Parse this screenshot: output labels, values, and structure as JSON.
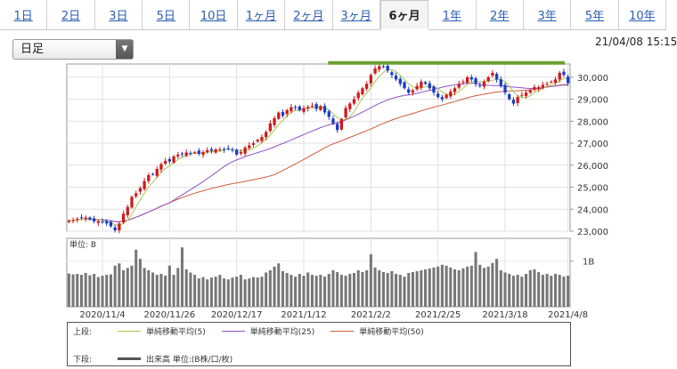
{
  "tabs": [
    {
      "label": "1日",
      "active": false
    },
    {
      "label": "2日",
      "active": false
    },
    {
      "label": "3日",
      "active": false
    },
    {
      "label": "5日",
      "active": false
    },
    {
      "label": "10日",
      "active": false
    },
    {
      "label": "1ヶ月",
      "active": false
    },
    {
      "label": "2ヶ月",
      "active": false
    },
    {
      "label": "3ヶ月",
      "active": false
    },
    {
      "label": "6ヶ月",
      "active": true
    },
    {
      "label": "1年",
      "active": false
    },
    {
      "label": "2年",
      "active": false
    },
    {
      "label": "3年",
      "active": false
    },
    {
      "label": "5年",
      "active": false
    },
    {
      "label": "10年",
      "active": false
    }
  ],
  "period_select": {
    "value": "日足"
  },
  "datetime": "21/04/08 15:15",
  "chart_data": {
    "type": "candlestick",
    "price_axis": {
      "ylim": [
        23000,
        30600
      ],
      "ticks": [
        23000,
        24000,
        25000,
        26000,
        27000,
        28000,
        29000,
        30000
      ],
      "tick_labels": [
        "23,000",
        "24,000",
        "25,000",
        "26,000",
        "27,000",
        "28,000",
        "29,000",
        "30,000"
      ]
    },
    "volume_axis": {
      "unit_label": "単位: B",
      "tick": 1,
      "tick_label": "1B"
    },
    "x_tick_labels": [
      "2020/11/4",
      "2020/11/26",
      "2020/12/17",
      "2021/1/12",
      "2021/2/2",
      "2021/2/25",
      "2021/3/18",
      "2021/4/8"
    ],
    "x_tick_index": [
      8,
      24,
      40,
      56,
      72,
      88,
      104,
      119
    ],
    "resistance_line": 30650,
    "close": [
      23480,
      23500,
      23560,
      23600,
      23620,
      23530,
      23450,
      23460,
      23420,
      23350,
      23220,
      23040,
      23350,
      23800,
      24100,
      24560,
      24720,
      24960,
      25280,
      25550,
      25590,
      25830,
      26050,
      26200,
      26170,
      26400,
      26480,
      26510,
      26580,
      26550,
      26590,
      26520,
      26600,
      26680,
      26650,
      26720,
      26710,
      26700,
      26760,
      26700,
      26480,
      26600,
      26800,
      26900,
      27000,
      27150,
      27280,
      27510,
      27900,
      28140,
      28390,
      28250,
      28500,
      28640,
      28620,
      28500,
      28600,
      28650,
      28700,
      28560,
      28690,
      28400,
      28200,
      27900,
      27600,
      28100,
      28600,
      28800,
      29000,
      29300,
      29500,
      29700,
      30100,
      30400,
      30500,
      30470,
      30300,
      30100,
      29900,
      29700,
      29500,
      29300,
      29400,
      29600,
      29800,
      29700,
      29500,
      29300,
      29100,
      29000,
      29200,
      29350,
      29500,
      29700,
      29800,
      30000,
      29900,
      29700,
      29600,
      29800,
      30000,
      30200,
      29900,
      29600,
      29300,
      29000,
      28800,
      29100,
      29200,
      29300,
      29400,
      29550,
      29550,
      29650,
      29700,
      29800,
      29900,
      30200,
      30100,
      29730
    ],
    "volume": [
      0.73,
      0.71,
      0.72,
      0.7,
      0.74,
      0.69,
      0.72,
      0.65,
      0.68,
      0.7,
      0.71,
      0.9,
      0.95,
      0.8,
      0.85,
      0.9,
      1.25,
      1.05,
      0.85,
      0.8,
      0.75,
      0.7,
      0.72,
      0.68,
      0.9,
      0.7,
      0.85,
      1.3,
      0.82,
      0.75,
      0.7,
      0.62,
      0.65,
      0.6,
      0.64,
      0.66,
      0.7,
      0.62,
      0.6,
      0.64,
      0.66,
      0.7,
      0.6,
      0.62,
      0.65,
      0.64,
      0.66,
      0.75,
      0.8,
      0.88,
      0.95,
      0.78,
      0.74,
      0.7,
      0.66,
      0.72,
      0.68,
      0.75,
      0.7,
      0.68,
      0.7,
      0.66,
      0.72,
      0.8,
      0.76,
      0.7,
      0.68,
      0.72,
      0.74,
      0.8,
      0.76,
      0.8,
      1.15,
      0.86,
      0.8,
      0.76,
      0.74,
      0.78,
      0.72,
      0.7,
      0.66,
      0.74,
      0.76,
      0.78,
      0.8,
      0.82,
      0.84,
      0.86,
      0.88,
      0.92,
      0.9,
      0.86,
      0.82,
      0.8,
      0.84,
      0.88,
      0.9,
      1.2,
      0.92,
      0.85,
      0.88,
      0.96,
      1.05,
      0.8,
      0.75,
      0.72,
      0.68,
      0.7,
      0.66,
      0.72,
      0.8,
      0.82,
      0.76,
      0.7,
      0.72,
      0.68,
      0.72,
      0.7,
      0.66,
      0.68
    ]
  },
  "legend": {
    "upper_label": "上段:",
    "lower_label": "下段:",
    "items": [
      {
        "label": "単純移動平均(5)",
        "color": "#a8c850"
      },
      {
        "label": "単純移動平均(25)",
        "color": "#9050c8"
      },
      {
        "label": "単純移動平均(50)",
        "color": "#d05a3a"
      }
    ],
    "volume_item": {
      "label": "出来高 単位:(B株/口/枚)",
      "color": "#555555"
    }
  }
}
